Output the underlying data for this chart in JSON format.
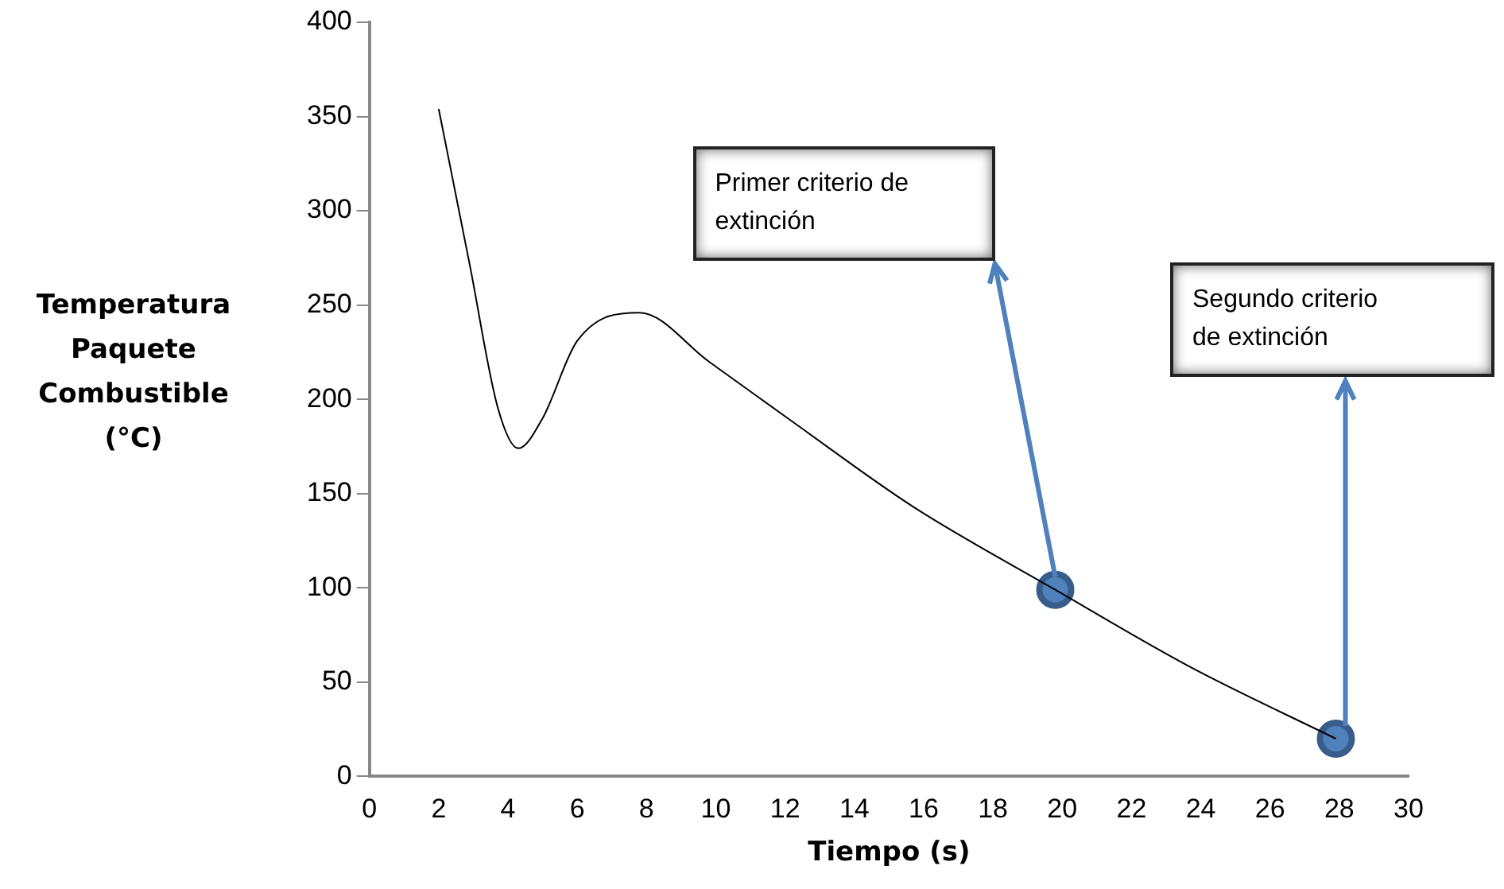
{
  "chart_data": {
    "type": "line",
    "xlabel": "Tiempo (s)",
    "ylabel": "Temperatura Paquete Combustible (°C)",
    "xlim": [
      0,
      30
    ],
    "xticks": [
      0,
      2,
      4,
      6,
      8,
      10,
      12,
      14,
      16,
      18,
      20,
      22,
      24,
      26,
      28,
      30
    ],
    "ylim": [
      0,
      400
    ],
    "yticks": [
      0,
      50,
      100,
      150,
      200,
      250,
      300,
      350,
      400
    ],
    "grid": false,
    "legend": false,
    "series": [
      {
        "color": "#000000",
        "marker": "none",
        "x": [
          2,
          2.9,
          3.7,
          4.3,
          5,
          6,
          7.8,
          9.8,
          12.3,
          15.7,
          19.8,
          23.7,
          27.9
        ],
        "values": [
          354,
          271,
          196,
          174,
          190,
          231,
          246,
          220,
          187,
          143,
          99,
          58,
          20
        ]
      },
      {
        "type": "scatter",
        "color": "#4f81bd",
        "marker": "circle",
        "x": [
          19.8,
          27.9
        ],
        "values": [
          99,
          20
        ]
      }
    ],
    "annotations": [
      "Primer criterio de extinción",
      "Segundo criterio de extinción"
    ]
  }
}
